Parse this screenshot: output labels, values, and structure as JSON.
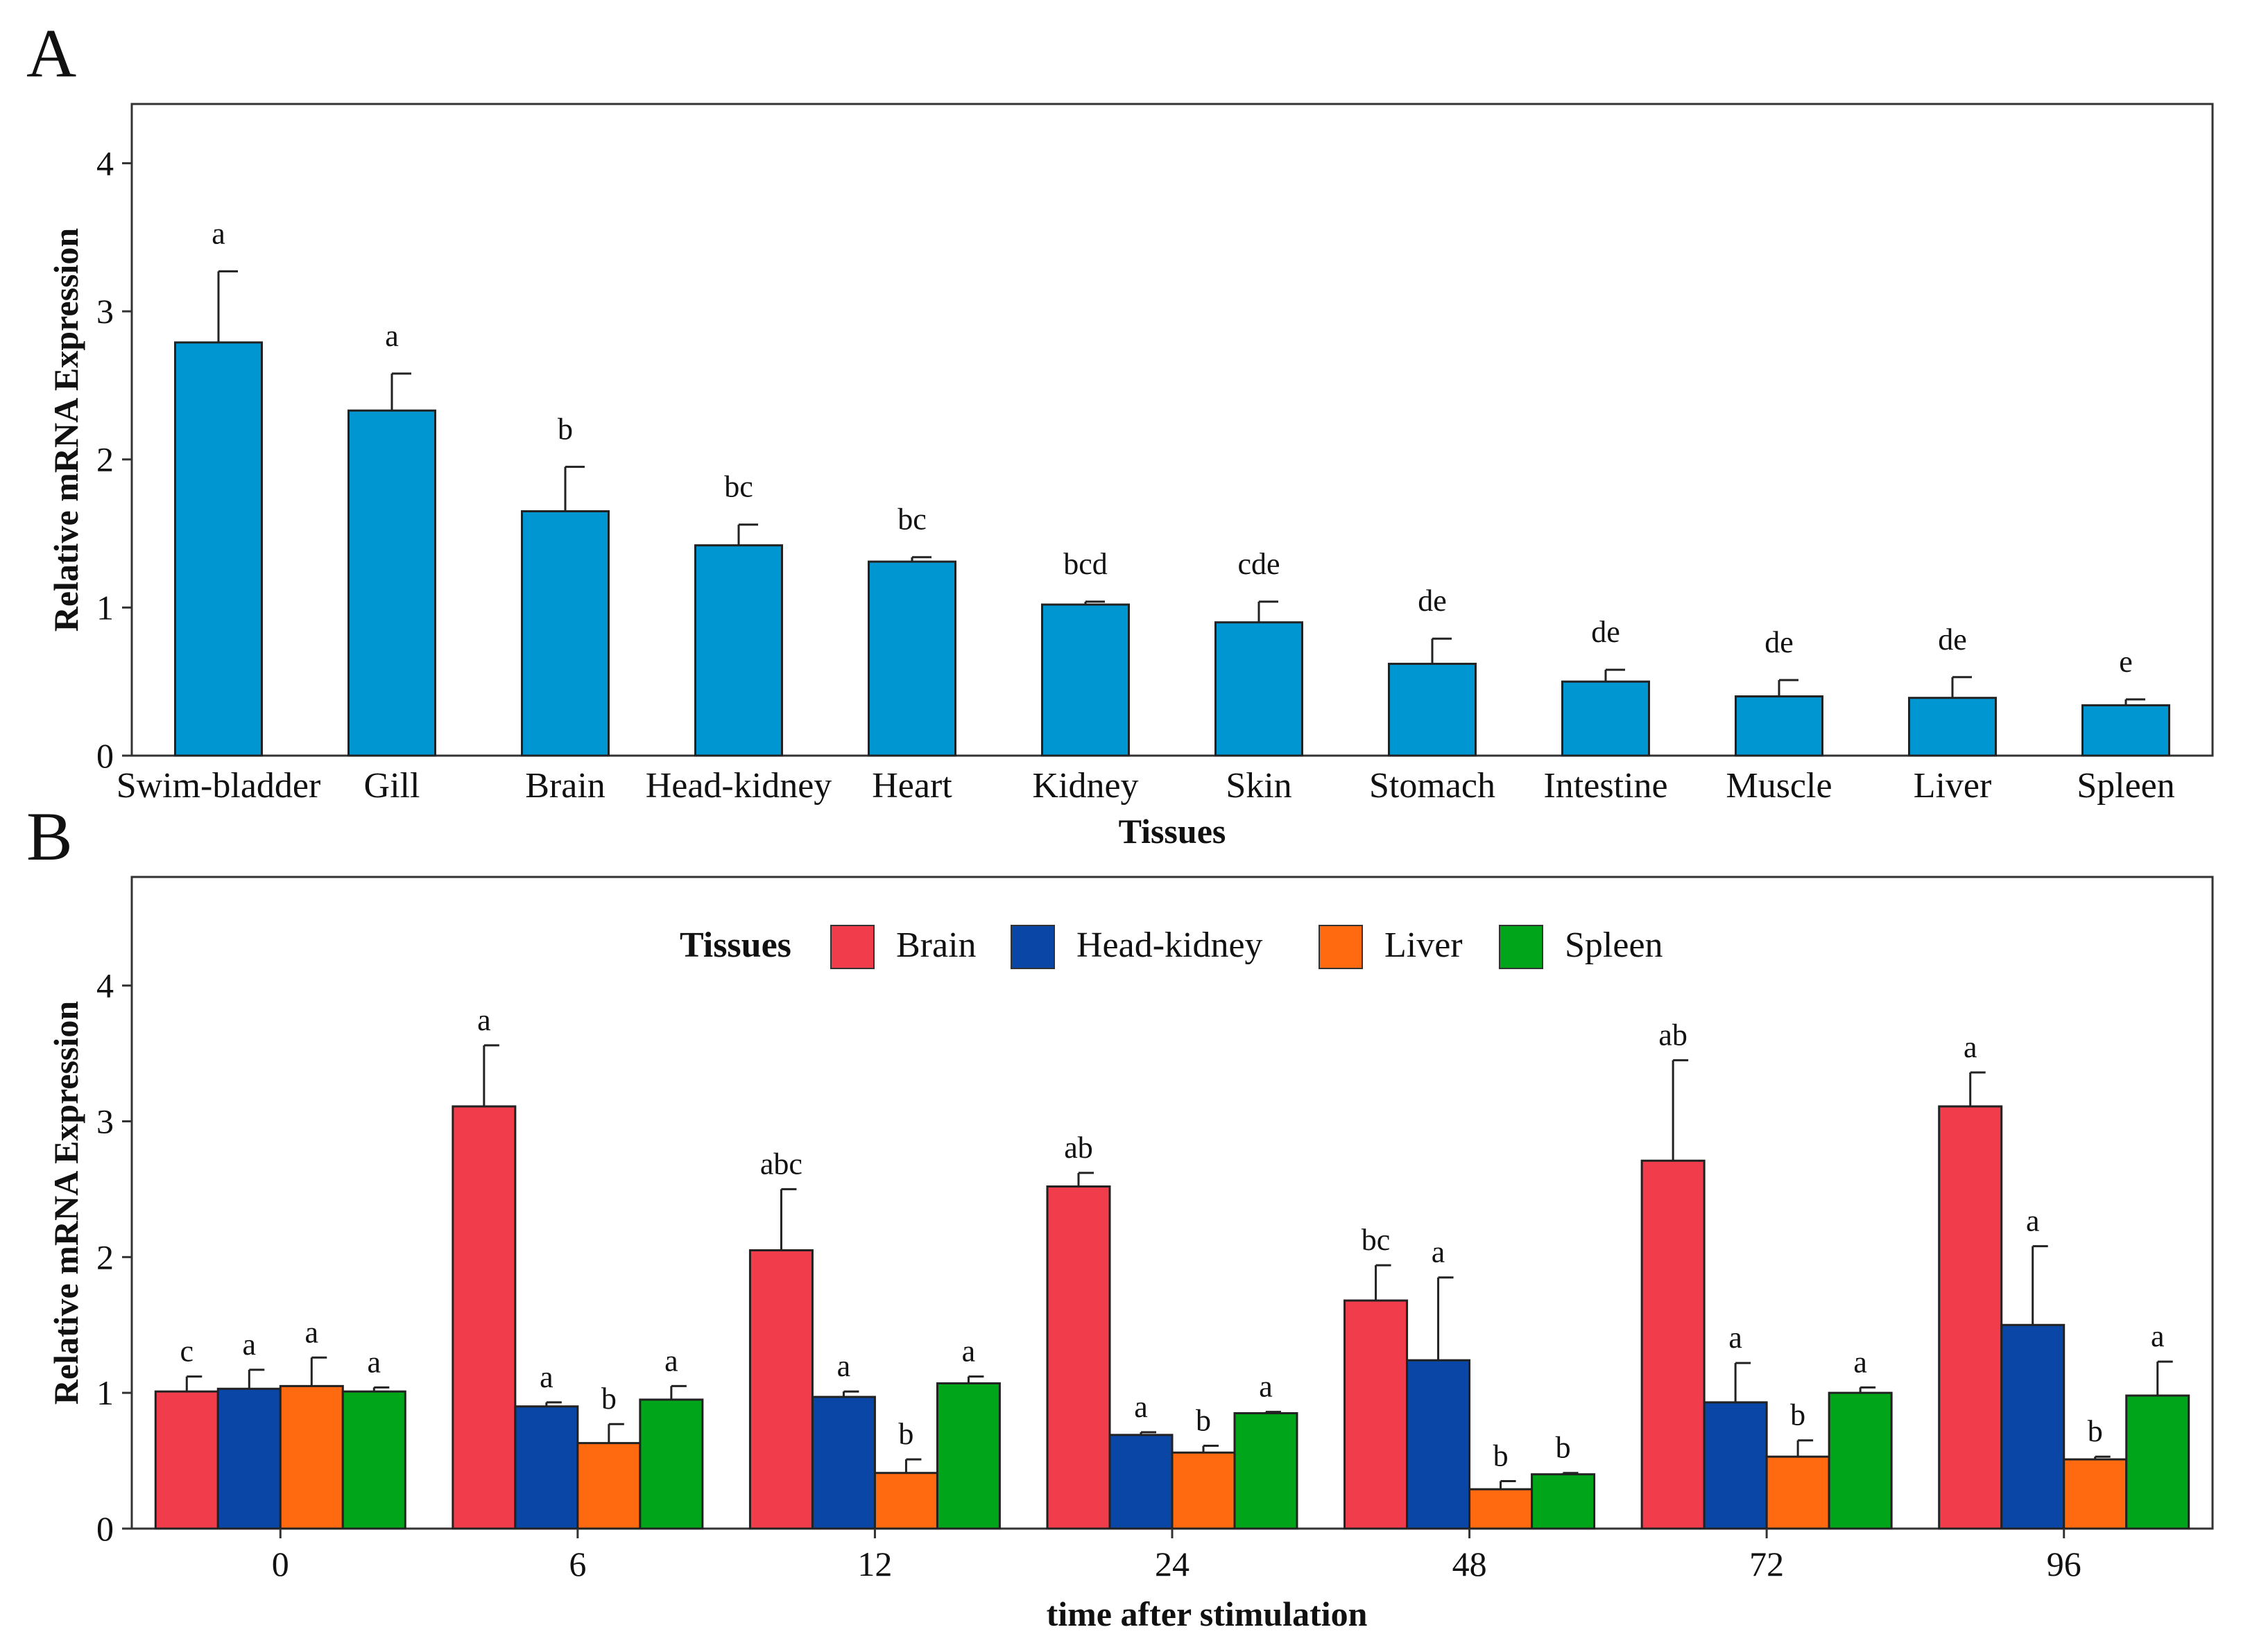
{
  "figure": {
    "panel_labels": [
      "A",
      "B"
    ]
  },
  "chart_data": [
    {
      "panel": "A",
      "type": "bar",
      "title": "",
      "xlabel": "Tissues",
      "ylabel": "Relative mRNA Expression",
      "ylim": [
        0,
        4.4
      ],
      "yticks": [
        0,
        1,
        2,
        3,
        4
      ],
      "grid": false,
      "color": "#0096D2",
      "categories": [
        "Swim-bladder",
        "Gill",
        "Brain",
        "Head-kidney",
        "Heart",
        "Kidney",
        "Skin",
        "Stomach",
        "Intestine",
        "Muscle",
        "Liver",
        "Spleen"
      ],
      "values": [
        2.79,
        2.33,
        1.65,
        1.42,
        1.31,
        1.02,
        0.9,
        0.62,
        0.5,
        0.4,
        0.39,
        0.34
      ],
      "errors": [
        0.48,
        0.25,
        0.3,
        0.14,
        0.03,
        0.02,
        0.14,
        0.17,
        0.08,
        0.11,
        0.14,
        0.04
      ],
      "significance": [
        "a",
        "a",
        "b",
        "bc",
        "bc",
        "bcd",
        "cde",
        "de",
        "de",
        "de",
        "de",
        "e"
      ]
    },
    {
      "panel": "B",
      "type": "bar",
      "title": "",
      "xlabel": "time after stimulation",
      "ylabel": "Relative mRNA Expression",
      "ylim": [
        0,
        4.8
      ],
      "yticks": [
        0,
        1,
        2,
        3,
        4
      ],
      "grid": false,
      "legend": {
        "title": "Tissues",
        "position": "top-center"
      },
      "categories": [
        "0",
        "6",
        "12",
        "24",
        "48",
        "72",
        "96"
      ],
      "series": [
        {
          "name": "Brain",
          "color": "#F03C4B",
          "values": [
            1.01,
            3.11,
            2.05,
            2.52,
            1.68,
            2.71,
            3.11
          ],
          "errors": [
            0.11,
            0.45,
            0.45,
            0.1,
            0.26,
            0.74,
            0.25
          ],
          "significance": [
            "c",
            "a",
            "abc",
            "ab",
            "bc",
            "ab",
            "a"
          ]
        },
        {
          "name": "Head-kidney",
          "color": "#0A46A5",
          "values": [
            1.03,
            0.9,
            0.97,
            0.69,
            1.24,
            0.93,
            1.5
          ],
          "errors": [
            0.14,
            0.03,
            0.04,
            0.02,
            0.61,
            0.29,
            0.58
          ],
          "significance": [
            "a",
            "a",
            "a",
            "a",
            "a",
            "a",
            "a"
          ]
        },
        {
          "name": "Liver",
          "color": "#FF690F",
          "values": [
            1.05,
            0.63,
            0.41,
            0.56,
            0.29,
            0.53,
            0.51
          ],
          "errors": [
            0.21,
            0.14,
            0.1,
            0.05,
            0.06,
            0.12,
            0.02
          ],
          "significance": [
            "a",
            "b",
            "b",
            "b",
            "b",
            "b",
            "b"
          ]
        },
        {
          "name": "Spleen",
          "color": "#00A519",
          "values": [
            1.01,
            0.95,
            1.07,
            0.85,
            0.4,
            1.0,
            0.98
          ],
          "errors": [
            0.03,
            0.1,
            0.05,
            0.01,
            0.01,
            0.04,
            0.25
          ],
          "significance": [
            "a",
            "a",
            "a",
            "a",
            "b",
            "a",
            "a"
          ]
        }
      ]
    }
  ]
}
